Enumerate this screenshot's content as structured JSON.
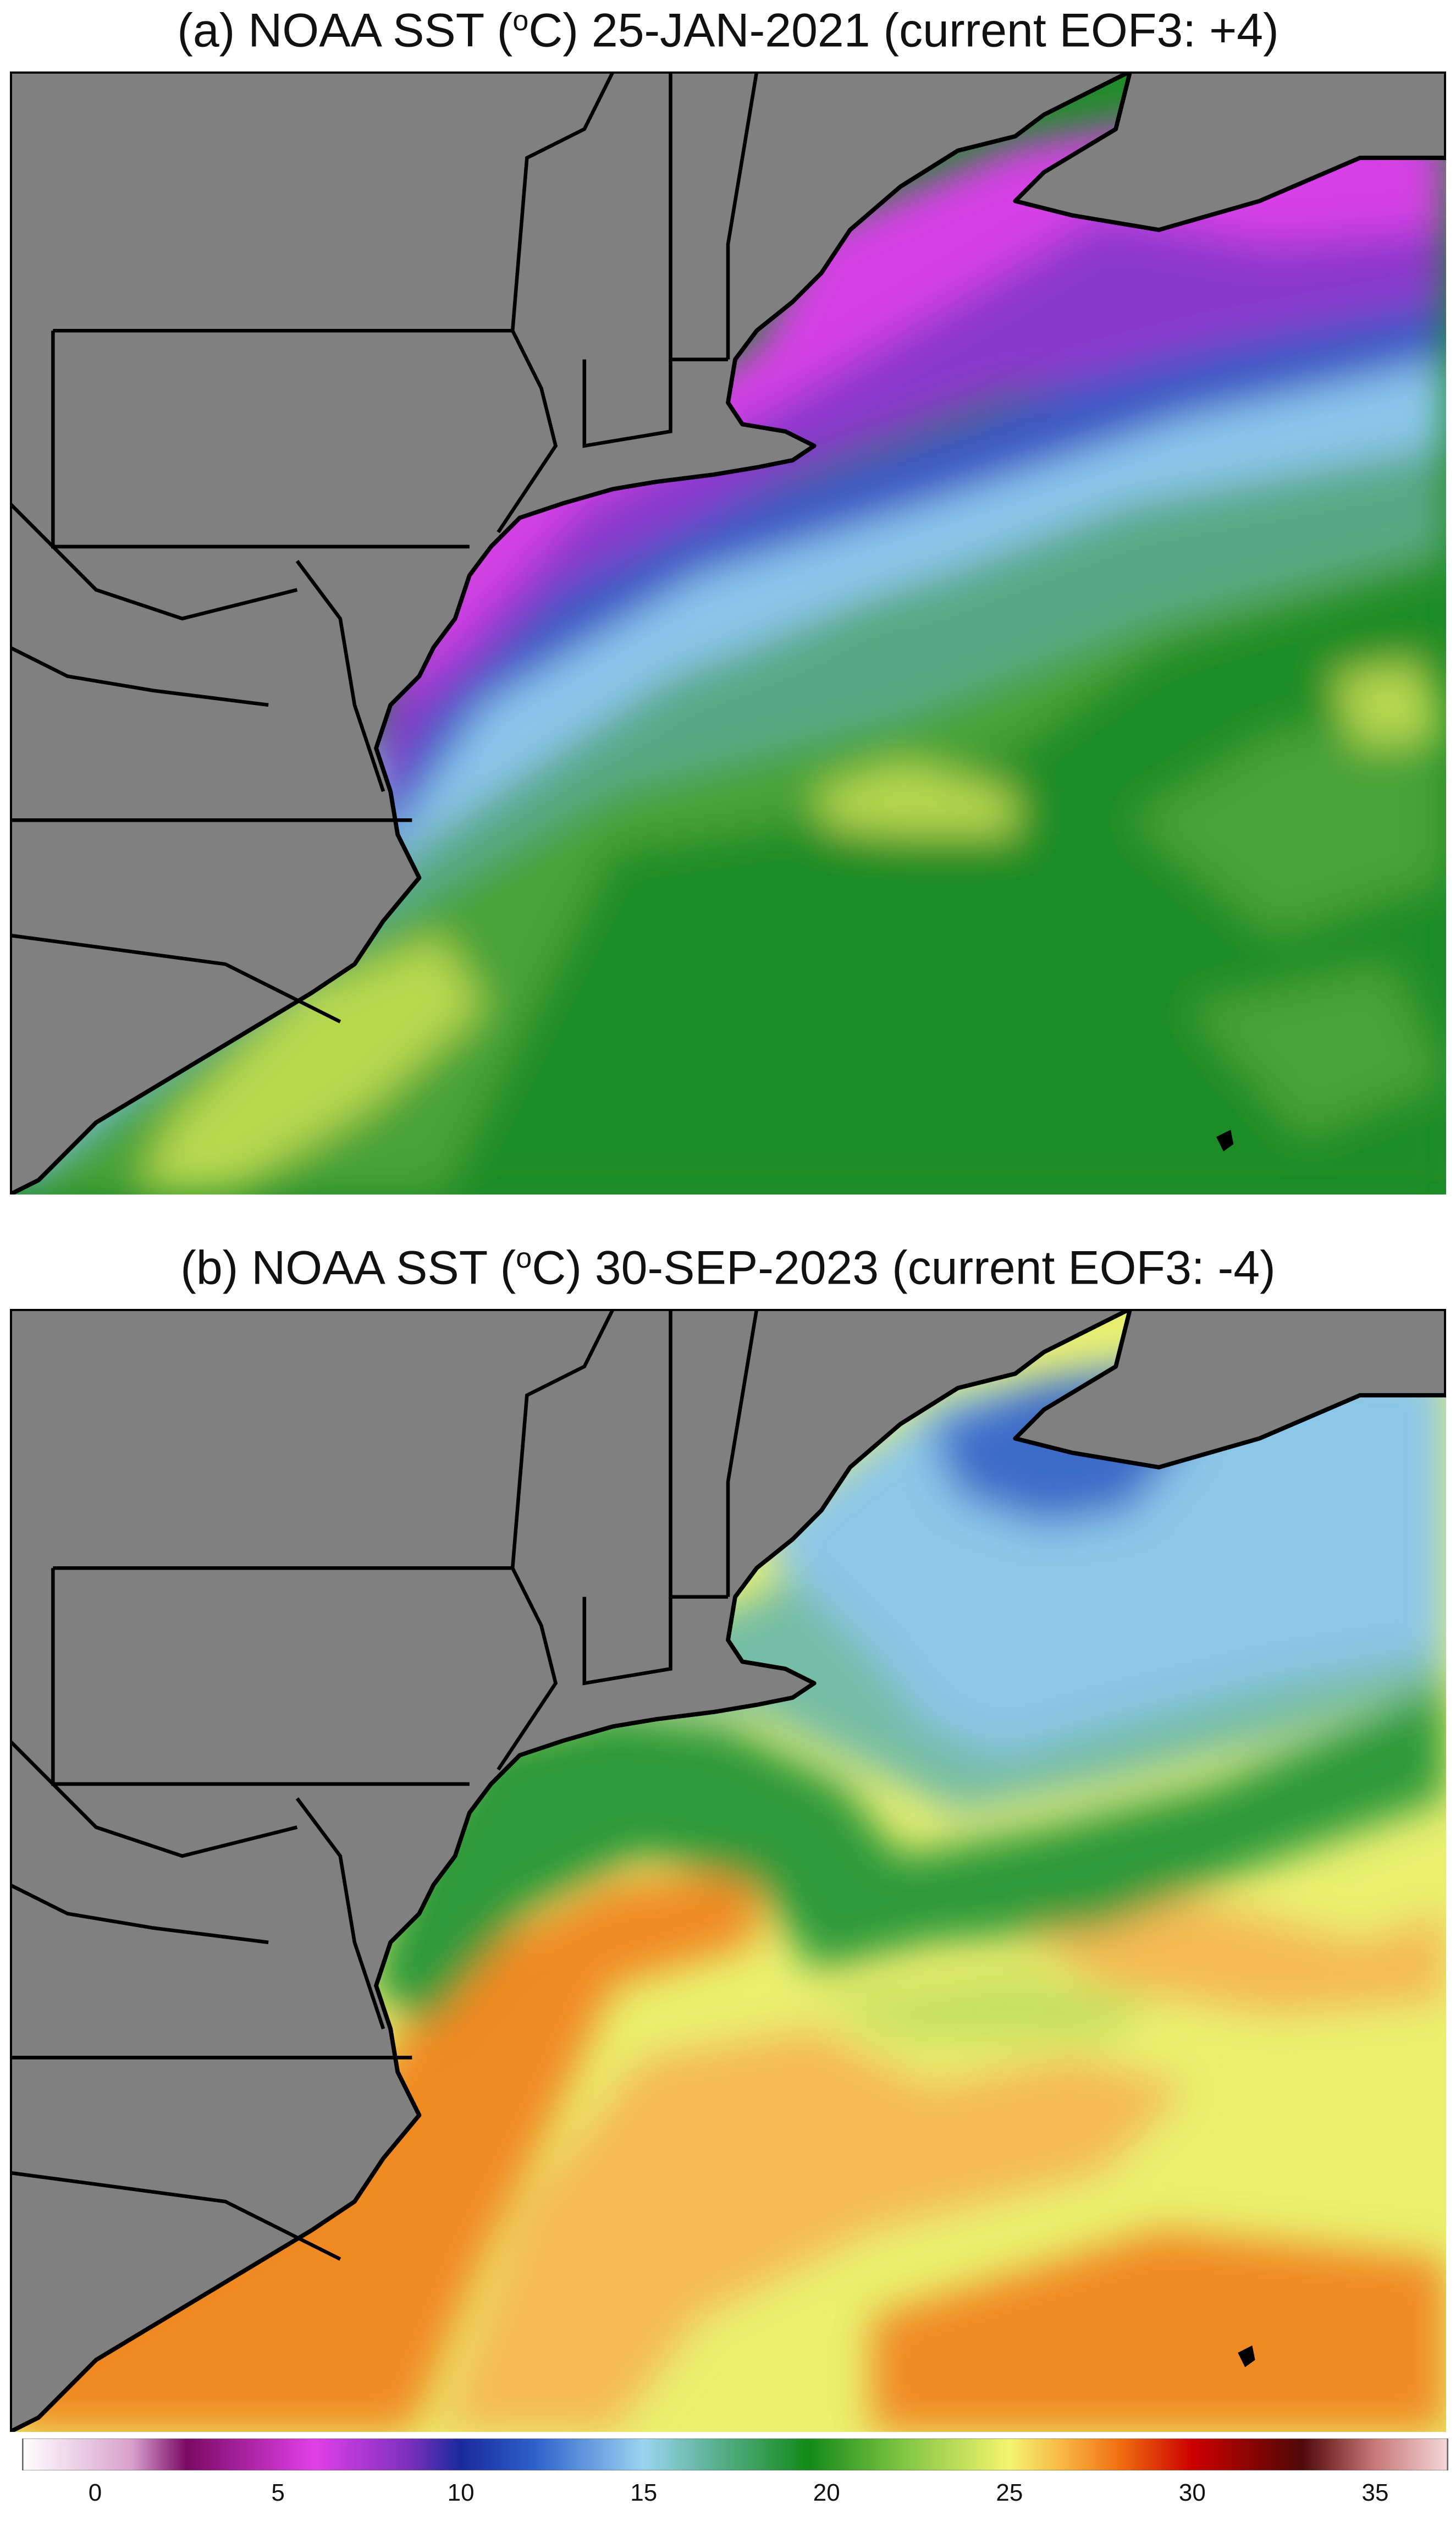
{
  "panels": [
    {
      "title_prefix": "(a) NOAA SST (",
      "title_sup": "o",
      "title_suffix": "C) 25-JAN-2021 (current EOF3: +4)",
      "colors": {
        "land": "#808080",
        "magenta": "#d640e6",
        "purple": "#8a38cc",
        "blue": "#3a56c4",
        "light_blue": "#8cc6ec",
        "teal": "#5aa886",
        "green": "#1f8c28",
        "green_light": "#48a338",
        "yellow_green": "#b8d850"
      }
    },
    {
      "title_prefix": "(b) NOAA SST (",
      "title_sup": "o",
      "title_suffix": "C) 30-SEP-2023 (current EOF3: -4)",
      "colors": {
        "land": "#808080",
        "blue": "#3e6cc8",
        "light_blue": "#8cc6e8",
        "teal": "#74bca6",
        "green": "#2e9a3a",
        "yellow": "#eaf070",
        "light_orange": "#f4ba52",
        "orange": "#f08a22",
        "dark_orange": "#e05a10"
      }
    }
  ],
  "colorbar": {
    "min": -2,
    "max": 37,
    "ticks": [
      "0",
      "5",
      "10",
      "15",
      "20",
      "25",
      "30",
      "35"
    ],
    "stops": [
      {
        "v": -2,
        "c": "#ffffff"
      },
      {
        "v": 1,
        "c": "#d8a0cc"
      },
      {
        "v": 2.5,
        "c": "#7a0a64"
      },
      {
        "v": 6,
        "c": "#e040e8"
      },
      {
        "v": 8.5,
        "c": "#8030c0"
      },
      {
        "v": 10,
        "c": "#1a2a9c"
      },
      {
        "v": 12,
        "c": "#2e60cc"
      },
      {
        "v": 15,
        "c": "#9ad4f0"
      },
      {
        "v": 17,
        "c": "#58b08e"
      },
      {
        "v": 19.5,
        "c": "#138a1a"
      },
      {
        "v": 22,
        "c": "#7cc440"
      },
      {
        "v": 25,
        "c": "#f4f470"
      },
      {
        "v": 26.5,
        "c": "#f8b440"
      },
      {
        "v": 28,
        "c": "#f07010"
      },
      {
        "v": 30,
        "c": "#cc0000"
      },
      {
        "v": 33,
        "c": "#500808"
      },
      {
        "v": 35,
        "c": "#c87878"
      },
      {
        "v": 37,
        "c": "#f4d8d8"
      }
    ]
  }
}
